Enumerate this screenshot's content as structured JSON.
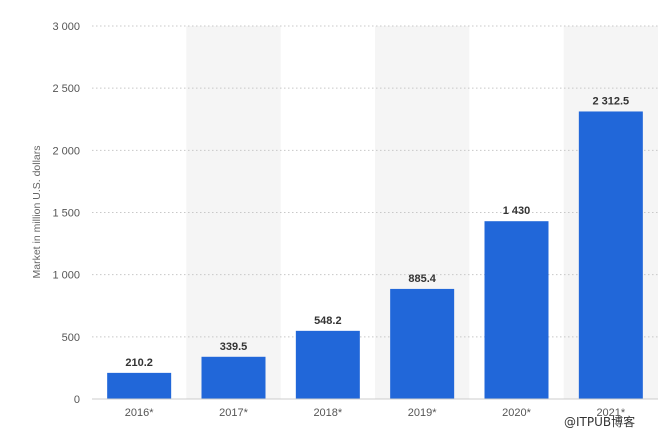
{
  "chart_data": {
    "type": "bar",
    "categories": [
      "2016*",
      "2017*",
      "2018*",
      "2019*",
      "2020*",
      "2021*"
    ],
    "values": [
      210.2,
      339.5,
      548.2,
      885.4,
      1430,
      2312.5
    ],
    "data_labels": [
      "210.2",
      "339.5",
      "548.2",
      "885.4",
      "1 430",
      "2 312.5"
    ],
    "title": "",
    "xlabel": "",
    "ylabel": "Market in million U.S. dollars",
    "ylim": [
      0,
      3000
    ],
    "yticks": [
      0,
      500,
      1000,
      1500,
      2000,
      2500,
      3000
    ],
    "ytick_labels": [
      "0",
      "500",
      "1 000",
      "1 500",
      "2 000",
      "2 500",
      "3 000"
    ],
    "grid": true,
    "bar_color": "#2167d9",
    "band_color": "#f5f5f5"
  },
  "watermark": "@ITPUB博客"
}
